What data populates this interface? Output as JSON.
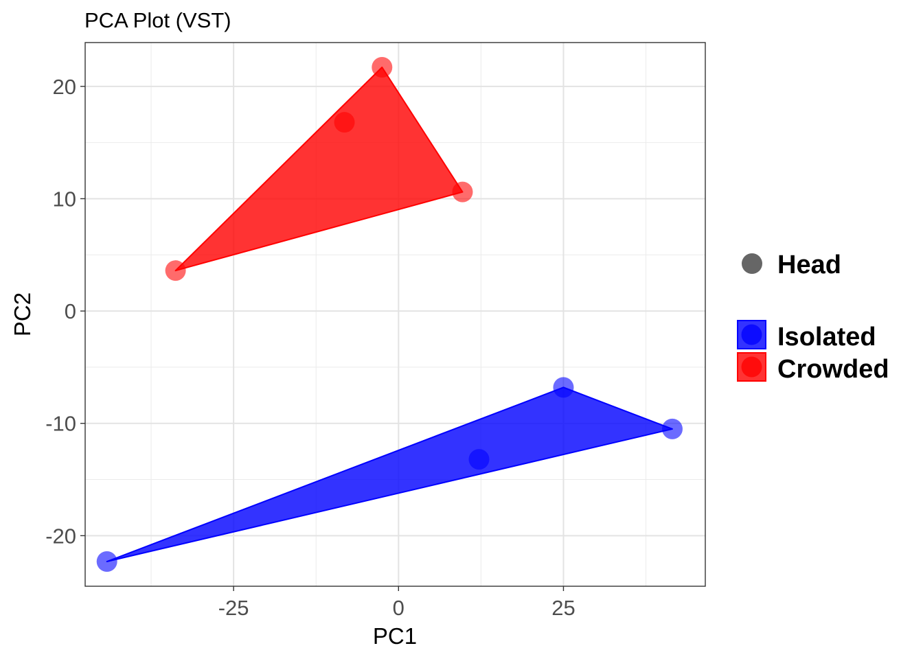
{
  "chart_data": {
    "type": "scatter",
    "title": "PCA Plot (VST)",
    "xlabel": "PC1",
    "ylabel": "PC2",
    "xlim": [
      -47.5,
      46.5
    ],
    "ylim": [
      -24.5,
      23.9
    ],
    "x_ticks": [
      -25,
      0,
      25
    ],
    "x_tick_labels": [
      "-25",
      "0",
      "25"
    ],
    "y_ticks": [
      -20,
      -10,
      0,
      10,
      20
    ],
    "y_tick_labels": [
      "-20",
      "-10",
      "0",
      "10",
      "20"
    ],
    "x_minor": [
      -37.5,
      -12.5,
      12.5,
      37.5
    ],
    "y_minor": [
      -15,
      -5,
      5,
      15
    ],
    "grid": true,
    "shape_legend": {
      "label": "Head",
      "color": "#666666"
    },
    "series": [
      {
        "name": "Isolated",
        "color": "#0000ff",
        "points": [
          {
            "x": 25,
            "y": -6.8
          },
          {
            "x": 41.5,
            "y": -10.5
          },
          {
            "x": 12.2,
            "y": -13.2
          },
          {
            "x": -44.2,
            "y": -22.3
          }
        ],
        "hull": [
          {
            "x": -44.2,
            "y": -22.3
          },
          {
            "x": 25,
            "y": -6.8
          },
          {
            "x": 41.5,
            "y": -10.5
          }
        ]
      },
      {
        "name": "Crowded",
        "color": "#ff0000",
        "points": [
          {
            "x": -2.5,
            "y": 21.7
          },
          {
            "x": -8.2,
            "y": 16.8
          },
          {
            "x": 9.7,
            "y": 10.6
          },
          {
            "x": -33.8,
            "y": 3.6
          }
        ],
        "hull": [
          {
            "x": -33.8,
            "y": 3.6
          },
          {
            "x": -2.5,
            "y": 21.7
          },
          {
            "x": 9.7,
            "y": 10.6
          }
        ]
      }
    ]
  }
}
